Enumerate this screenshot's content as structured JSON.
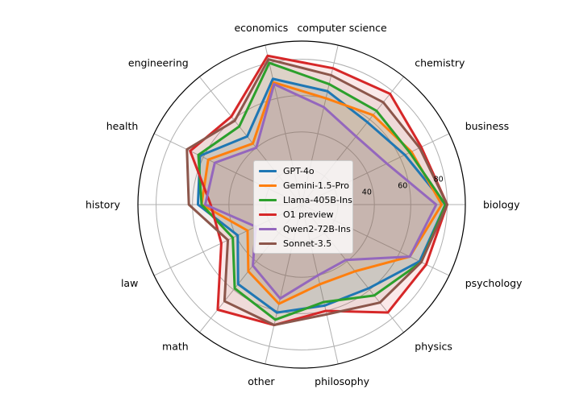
{
  "chart_data": {
    "type": "radar",
    "categories": [
      "biology",
      "business",
      "chemistry",
      "computer science",
      "economics",
      "engineering",
      "health",
      "history",
      "law",
      "math",
      "other",
      "philosophy",
      "physics",
      "psychology"
    ],
    "rlim": [
      0,
      90
    ],
    "rticks": [
      20,
      40,
      60,
      80
    ],
    "rtick_labels": [
      "",
      "40",
      "60",
      "80"
    ],
    "grid": true,
    "legend_placement": "center",
    "series": [
      {
        "name": "GPT-4o",
        "color": "#1f77b4",
        "values": [
          79,
          63,
          58,
          64,
          71,
          48,
          62,
          57,
          39,
          56,
          61,
          57,
          59,
          72
        ]
      },
      {
        "name": "Gemini-1.5-Pro",
        "color": "#ff7f0e",
        "values": [
          77,
          67,
          63,
          60,
          69,
          43,
          57,
          55,
          33,
          47,
          56,
          45,
          47,
          66
        ]
      },
      {
        "name": "Llama-405B-Ins",
        "color": "#2ca02c",
        "values": [
          79,
          66,
          66,
          68,
          80,
          55,
          63,
          55,
          42,
          59,
          65,
          55,
          64,
          73
        ]
      },
      {
        "name": "O1 preview",
        "color": "#d62728",
        "values": [
          80,
          73,
          78,
          77,
          84,
          62,
          68,
          50,
          49,
          74,
          68,
          60,
          76,
          76
        ]
      },
      {
        "name": "Qwen2-72B-Ins",
        "color": "#9467bd",
        "values": [
          74,
          52,
          48,
          55,
          68,
          40,
          53,
          53,
          28,
          43,
          53,
          40,
          39,
          66
        ]
      },
      {
        "name": "Sonnet-3.5",
        "color": "#8c564b",
        "values": [
          80,
          72,
          72,
          73,
          82,
          59,
          70,
          62,
          45,
          68,
          68,
          62,
          69,
          73
        ]
      }
    ]
  }
}
